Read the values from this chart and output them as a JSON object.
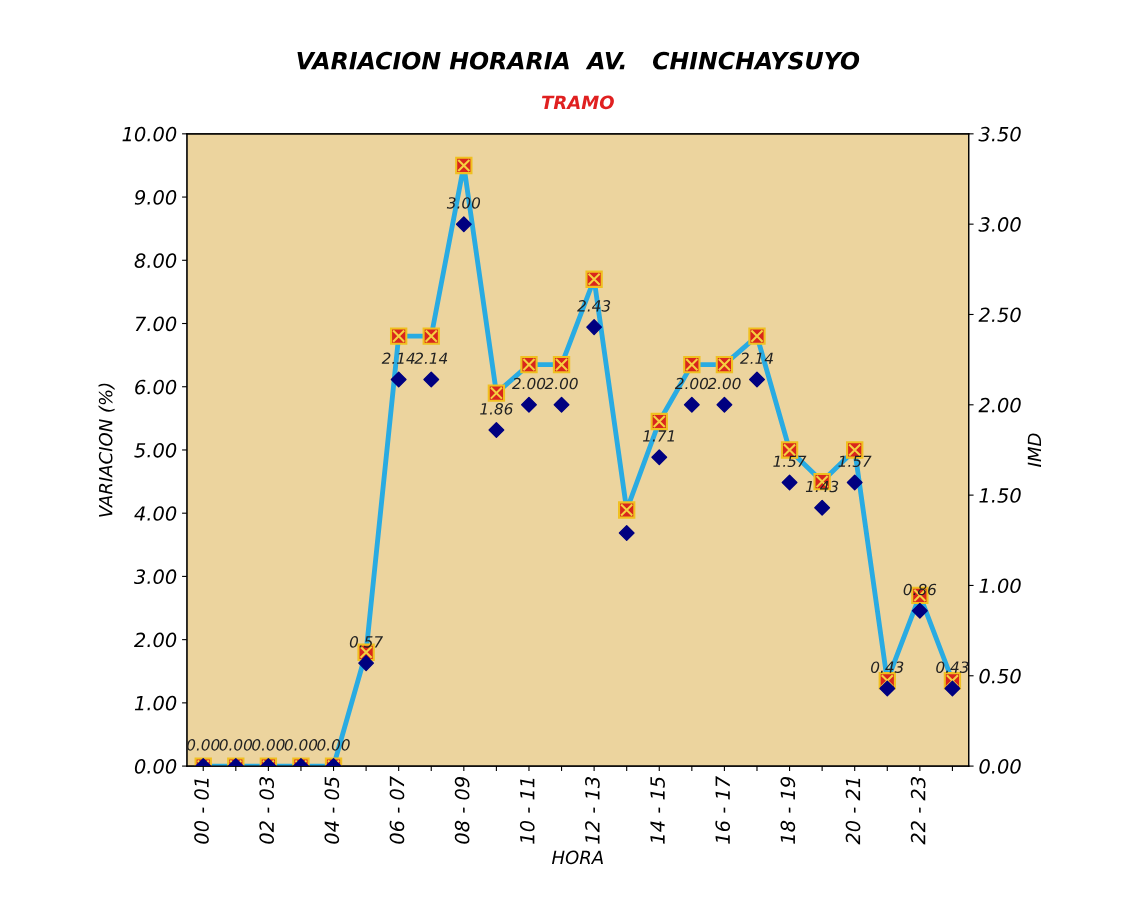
{
  "chart_data": {
    "type": "line",
    "title": "VARIACION HORARIA  AV.   CHINCHAYSUYO",
    "subtitle": "TRAMO",
    "xlabel": "HORA",
    "ylabel": "VARIACION (%)",
    "y2label": "IMD",
    "categories": [
      "00 - 01",
      null,
      "02 - 03",
      null,
      "04 - 05",
      null,
      "06 - 07",
      null,
      "08 - 09",
      null,
      "10 - 11",
      null,
      "12 - 13",
      null,
      "14 - 15",
      null,
      "16 - 17",
      null,
      "18 - 19",
      null,
      "20 - 21",
      null,
      "22 - 23",
      null
    ],
    "series": [
      {
        "color": "#29abe2",
        "marker": "square",
        "line_style": "solid",
        "values": [
          0,
          0,
          0,
          0,
          0,
          1.8,
          6.8,
          6.8,
          9.5,
          5.9,
          6.35,
          6.35,
          7.7,
          4.05,
          5.45,
          6.35,
          6.35,
          6.8,
          5.0,
          4.5,
          5.0,
          1.35,
          2.7,
          1.35
        ]
      },
      {
        "type": "scatter",
        "axis": "y2",
        "color": "#000080",
        "marker": "diamond",
        "values": [
          0,
          0,
          0,
          0,
          0,
          0.57,
          2.14,
          2.14,
          3.0,
          1.86,
          2.0,
          2.0,
          2.43,
          1.29,
          1.71,
          2.0,
          2.0,
          2.14,
          1.57,
          1.43,
          1.57,
          0.43,
          0.86,
          0.43
        ],
        "value_labels": [
          "0.00",
          "0.00",
          "0.00",
          "0.00",
          "0.00",
          "0.57",
          "2.14",
          "2.14",
          "3.00",
          "1.86",
          "2.00",
          "2.00",
          "2.43",
          null,
          "1.71",
          "2.00",
          "2.00",
          "2.14",
          "1.57",
          "1.43",
          "1.57",
          "0.43",
          "0.86",
          "0.43"
        ]
      }
    ],
    "ylim": [
      0,
      10
    ],
    "yticks": [
      {
        "value": 0,
        "label": "0.00"
      },
      {
        "value": 1,
        "label": "1.00"
      },
      {
        "value": 2,
        "label": "2.00"
      },
      {
        "value": 3,
        "label": "3.00"
      },
      {
        "value": 4,
        "label": "4.00"
      },
      {
        "value": 5,
        "label": "5.00"
      },
      {
        "value": 6,
        "label": "6.00"
      },
      {
        "value": 7,
        "label": "7.00"
      },
      {
        "value": 8,
        "label": "8.00"
      },
      {
        "value": 9,
        "label": "9.00"
      },
      {
        "value": 10,
        "label": "10.00"
      }
    ],
    "y2lim": [
      0,
      3.5
    ],
    "y2ticks": [
      {
        "value": 0,
        "label": "0.00"
      },
      {
        "value": 0.5,
        "label": "0.50"
      },
      {
        "value": 1,
        "label": "1.00"
      },
      {
        "value": 1.5,
        "label": "1.50"
      },
      {
        "value": 2,
        "label": "2.00"
      },
      {
        "value": 2.5,
        "label": "2.50"
      },
      {
        "value": 3,
        "label": "3.00"
      },
      {
        "value": 3.5,
        "label": "3.50"
      }
    ],
    "grid": false,
    "legend": false
  }
}
